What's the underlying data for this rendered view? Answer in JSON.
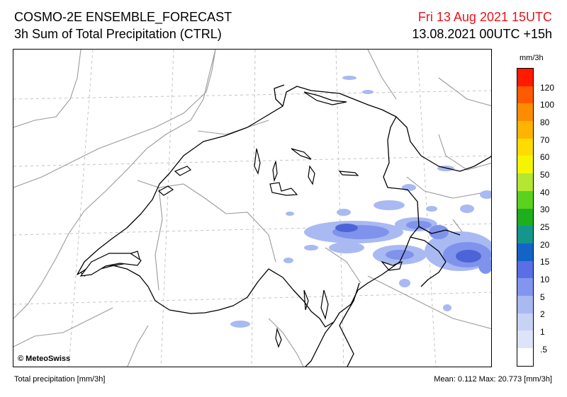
{
  "header": {
    "title": "COSMO-2E ENSEMBLE_FORECAST",
    "subtitle": "3h Sum of Total Precipitation (CTRL)",
    "valid_time": "Fri 13 Aug 2021 15UTC",
    "run_time": "13.08.2021 00UTC +15h"
  },
  "map": {
    "copyright": "© MeteoSwiss",
    "colors": {
      "border": "#000000",
      "lakes": "#000000",
      "regions": "#9a9a9a",
      "grid": "#c0c0c0",
      "precip_light": "#a9b9f2",
      "precip_medium": "#7f93ec",
      "precip_heavy": "#4d64d8"
    }
  },
  "legend": {
    "unit": "mm/3h",
    "labels": [
      "120",
      "100",
      "80",
      "70",
      "60",
      "50",
      "40",
      "30",
      "25",
      "20",
      "15",
      "10",
      "5",
      "2",
      "1",
      ".5"
    ],
    "colors": [
      "#ff1a00",
      "#ff5a00",
      "#ff8c00",
      "#ffb400",
      "#ffdc00",
      "#f5f500",
      "#b4e632",
      "#5ad21e",
      "#1eaf1e",
      "#14968c",
      "#1464c8",
      "#5a6ee6",
      "#8296f0",
      "#a9b9f2",
      "#c8d2f5",
      "#dde4fa",
      "#ffffff"
    ]
  },
  "footer": {
    "left": "Total precipitation [mm/3h]",
    "right": "Mean:   0.112 Max:  20.773 [mm/3h]"
  }
}
